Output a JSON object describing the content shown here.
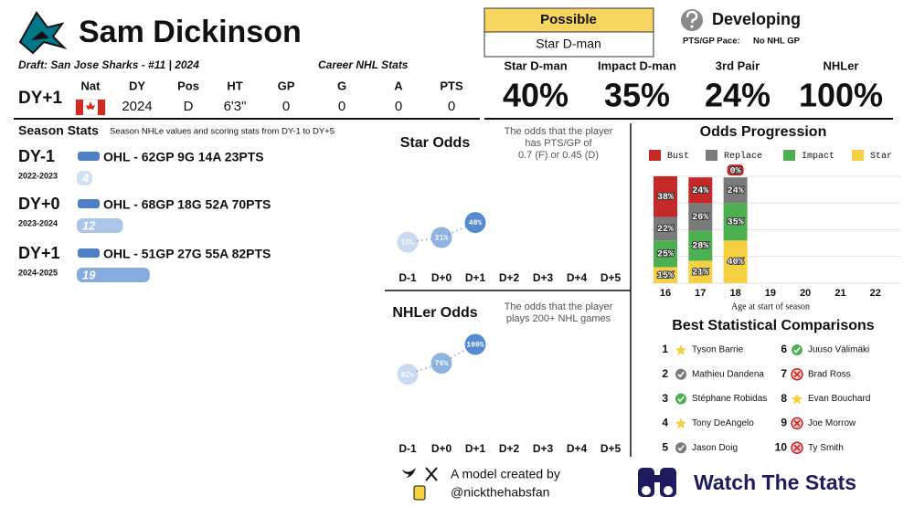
{
  "header": {
    "name": "Sam Dickinson",
    "draft": "Draft: San Jose Sharks - #11 | 2024",
    "career_title": "Career NHL Stats"
  },
  "bio": {
    "dy": "DY+1",
    "nat_label": "Nat",
    "stats": [
      {
        "label": "DY",
        "value": 2024
      },
      {
        "label": "Pos",
        "value": "D"
      },
      {
        "label": "HT",
        "value": "6'3\""
      },
      {
        "label": "GP",
        "value": 0
      },
      {
        "label": "G",
        "value": 0
      },
      {
        "label": "A",
        "value": 0
      },
      {
        "label": "PTS",
        "value": 0
      }
    ]
  },
  "projection": {
    "label": "Possible",
    "value": "Star D-man",
    "tier": "Developing",
    "pace_label": "PTS/GP Pace:",
    "pace_value": "No NHL GP"
  },
  "odds": [
    {
      "label": "Star D-man",
      "value": "40%"
    },
    {
      "label": "Impact D-man",
      "value": "35%"
    },
    {
      "label": "3rd Pair",
      "value": "24%"
    },
    {
      "label": "NHLer",
      "value": "100%"
    }
  ],
  "season_stats": {
    "title": "Season Stats",
    "subtitle": "Season NHLe values and scoring stats from DY-1 to DY+5",
    "rows": [
      {
        "dy": "DY-1",
        "years": "2022-2023",
        "line": "OHL - 62GP 9G 14A 23PTS",
        "nhle": 4
      },
      {
        "dy": "DY+0",
        "years": "2023-2024",
        "line": "OHL - 68GP 18G 52A 70PTS",
        "nhle": 12
      },
      {
        "dy": "DY+1",
        "years": "2024-2025",
        "line": "OHL - 51GP 27G 55A 82PTS",
        "nhle": 19
      }
    ]
  },
  "comparisons": {
    "title": "Best Statistical Comparisons",
    "players": [
      {
        "rank": 1,
        "name": "Tyson Barrie",
        "outcome": "star"
      },
      {
        "rank": 2,
        "name": "Mathieu Dandena",
        "outcome": "replace"
      },
      {
        "rank": 3,
        "name": "Stéphane Robidas",
        "outcome": "impact"
      },
      {
        "rank": 4,
        "name": "Tony DeAngelo",
        "outcome": "star"
      },
      {
        "rank": 5,
        "name": "Jason Doig",
        "outcome": "replace"
      },
      {
        "rank": 6,
        "name": "Juuso Välimäki",
        "outcome": "impact"
      },
      {
        "rank": 7,
        "name": "Brad Ross",
        "outcome": "bust"
      },
      {
        "rank": 8,
        "name": "Evan Bouchard",
        "outcome": "star"
      },
      {
        "rank": 9,
        "name": "Joe Morrow",
        "outcome": "bust"
      },
      {
        "rank": 10,
        "name": "Ty Smith",
        "outcome": "bust"
      }
    ]
  },
  "footer": {
    "credit": "A model created by",
    "handle": "@nickthehabsfan",
    "brand": "Watch The Stats"
  },
  "chart_data": [
    {
      "type": "scatter",
      "title": "Star Odds",
      "subtitle": [
        "The odds that the player",
        "has PTS/GP of",
        "0.7 (F) or 0.45 (D)"
      ],
      "categories": [
        "D-1",
        "D+0",
        "D+1",
        "D+2",
        "D+3",
        "D+4",
        "D+5"
      ],
      "values": [
        15,
        21,
        40,
        null,
        null,
        null,
        null
      ],
      "value_labels": [
        "15%",
        "21%",
        "40%",
        null,
        null,
        null,
        null
      ],
      "color": "#4f86d0",
      "ylim": [
        0,
        100
      ]
    },
    {
      "type": "scatter",
      "title": "NHLer Odds",
      "subtitle": [
        "The odds that the player",
        "plays 200+ NHL games"
      ],
      "categories": [
        "D-1",
        "D+0",
        "D+1",
        "D+2",
        "D+3",
        "D+4",
        "D+5"
      ],
      "values": [
        62,
        76,
        100,
        null,
        null,
        null,
        null
      ],
      "value_labels": [
        "62%",
        "76%",
        "100%",
        null,
        null,
        null,
        null
      ],
      "color": "#4f86d0",
      "ylim": [
        0,
        100
      ]
    },
    {
      "type": "bar",
      "stacked": true,
      "title": "Odds Progression",
      "x_label": "Age at start of season",
      "categories": [
        "16",
        "17",
        "18",
        "19",
        "20",
        "21",
        "22"
      ],
      "series": [
        {
          "name": "Bust",
          "color": "#c62828",
          "values": [
            38,
            24,
            0,
            null,
            null,
            null,
            null
          ],
          "value_labels": [
            "38%",
            "24%",
            "0%",
            null,
            null,
            null,
            null
          ]
        },
        {
          "name": "Replace",
          "color": "#7a7a7a",
          "values": [
            22,
            26,
            24,
            null,
            null,
            null,
            null
          ],
          "value_labels": [
            "22%",
            "26%",
            "24%",
            null,
            null,
            null,
            null
          ]
        },
        {
          "name": "Impact",
          "color": "#4caf50",
          "values": [
            25,
            28,
            35,
            null,
            null,
            null,
            null
          ],
          "value_labels": [
            "25%",
            "28%",
            "35%",
            null,
            null,
            null,
            null
          ]
        },
        {
          "name": "Star",
          "color": "#f5d142",
          "values": [
            15,
            21,
            40,
            null,
            null,
            null,
            null
          ],
          "value_labels": [
            "15%",
            "21%",
            "40%",
            null,
            null,
            null,
            null
          ]
        }
      ],
      "ylim": [
        0,
        100
      ],
      "grid": true,
      "legend": "top"
    }
  ]
}
